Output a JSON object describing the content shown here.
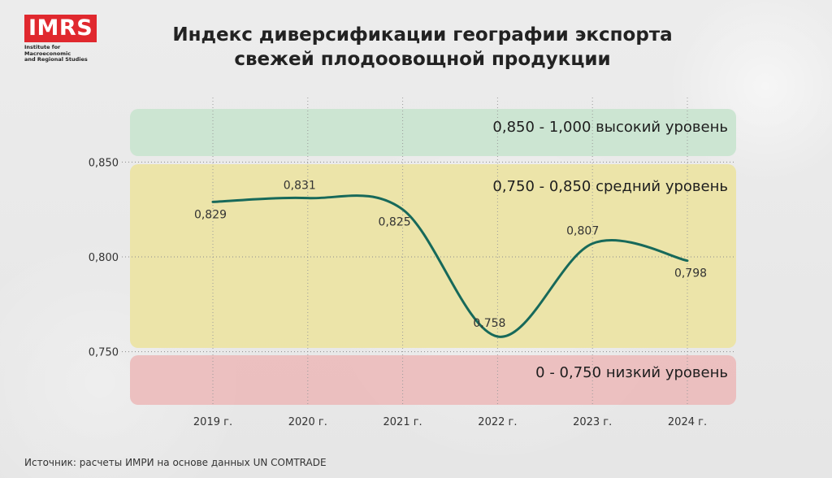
{
  "logo": {
    "text": "IMRS",
    "subtitle_line1": "Institute for Macroeconomic",
    "subtitle_line2": "and Regional Studies"
  },
  "title_line1": "Индекс диверсификации географии экспорта",
  "title_line2": "свежей плодоовощной продукции",
  "source": "Источник: расчеты ИМРИ на основе данных UN COMTRADE",
  "colors": {
    "line": "#17695a",
    "band_high": "#c9e4cf",
    "band_mid": "#ebe3a3",
    "band_low": "#ebbcbc"
  },
  "chart_data": {
    "type": "line",
    "categories": [
      "2019 г.",
      "2020 г.",
      "2021 г.",
      "2022 г.",
      "2023 г.",
      "2024 г."
    ],
    "values": [
      0.829,
      0.831,
      0.825,
      0.758,
      0.807,
      0.798
    ],
    "data_labels": [
      "0,829",
      "0,831",
      "0,825",
      "0,758",
      "0,807",
      "0,798"
    ],
    "y_ticks": [
      {
        "value": 0.85,
        "label": "0,850"
      },
      {
        "value": 0.8,
        "label": "0,800"
      },
      {
        "value": 0.75,
        "label": "0,750"
      }
    ],
    "ylim": [
      0.722,
      0.878
    ],
    "bands": [
      {
        "from": 0.85,
        "to": 1.0,
        "range_label": "0,850 - 1,000",
        "level_label": "высокий уровень",
        "color": "#c9e4cf"
      },
      {
        "from": 0.75,
        "to": 0.85,
        "range_label": "0,750 - 0,850",
        "level_label": "средний уровень",
        "color": "#ebe3a3"
      },
      {
        "from": 0.0,
        "to": 0.75,
        "range_label": "0 - 0,750",
        "level_label": "низкий уровень",
        "color": "#ebbcbc"
      }
    ],
    "grid": true,
    "legend": "none"
  }
}
